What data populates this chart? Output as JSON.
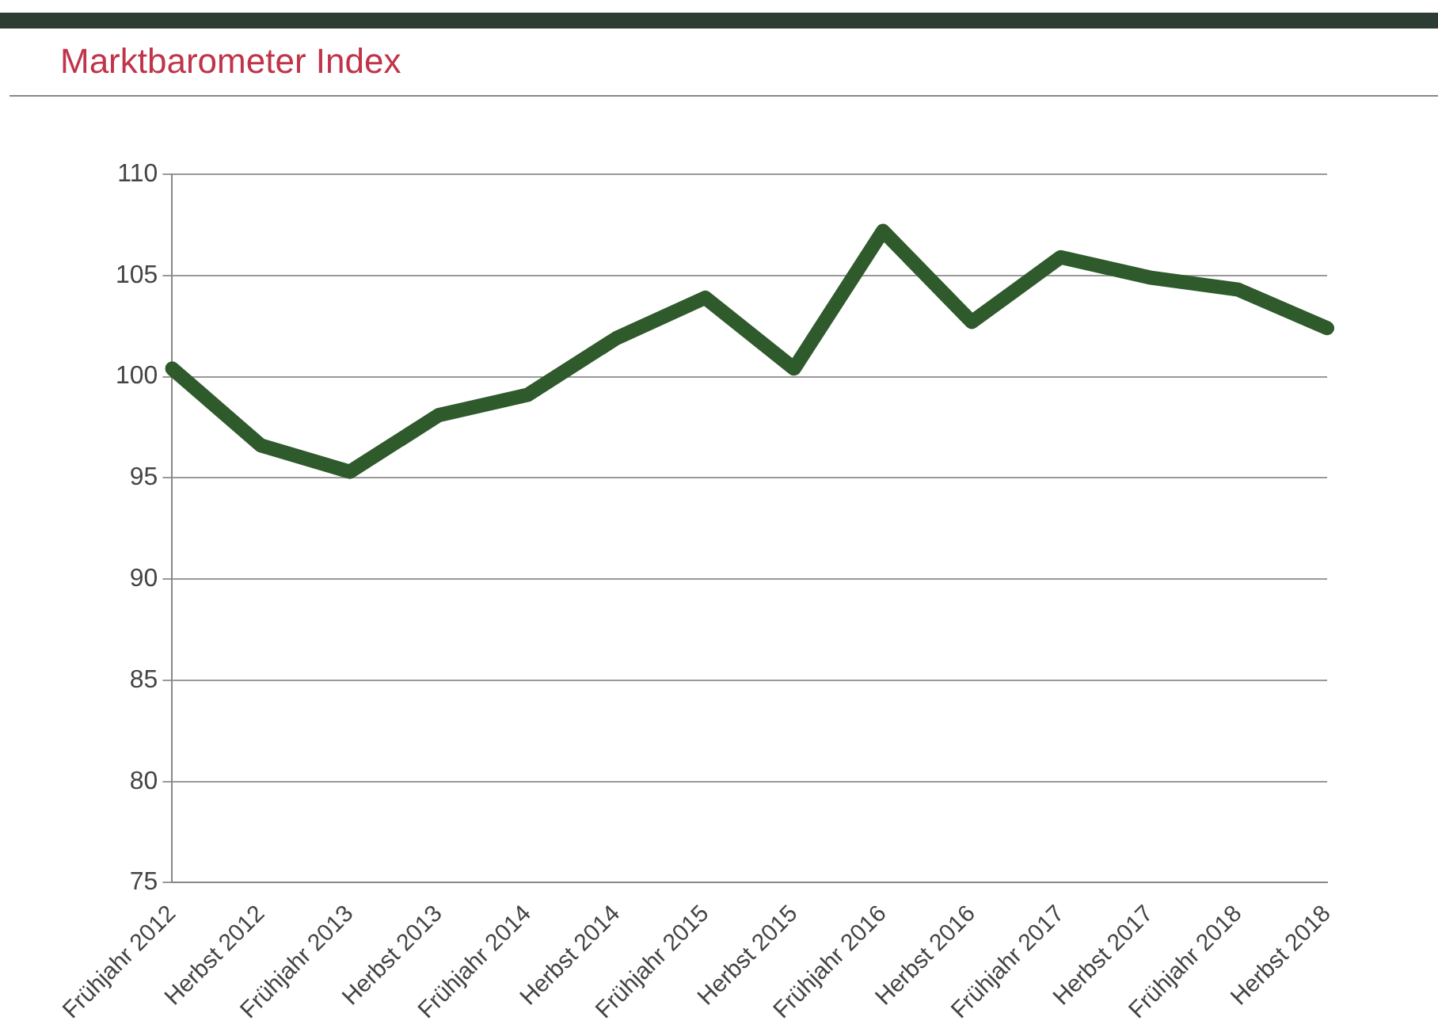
{
  "chart_data": {
    "type": "line",
    "title": "Marktbarometer Index",
    "categories": [
      "Frühjahr 2012",
      "Herbst 2012",
      "Frühjahr 2013",
      "Herbst 2013",
      "Frühjahr 2014",
      "Herbst 2014",
      "Frühjahr 2015",
      "Herbst 2015",
      "Frühjahr 2016",
      "Herbst 2016",
      "Frühjahr 2017",
      "Herbst 2017",
      "Frühjahr 2018",
      "Herbst 2018"
    ],
    "series": [
      {
        "color": "#2f5a2c",
        "values": [
          100.4,
          96.6,
          95.3,
          98.1,
          99.1,
          101.9,
          103.9,
          100.4,
          107.2,
          102.7,
          105.9,
          104.9,
          104.3,
          102.4
        ]
      }
    ],
    "ylim": [
      75,
      110
    ],
    "yticks": [
      75,
      80,
      85,
      90,
      95,
      100,
      105,
      110
    ],
    "grid": "y",
    "legend": false,
    "marker": "none",
    "line_style": "solid"
  }
}
